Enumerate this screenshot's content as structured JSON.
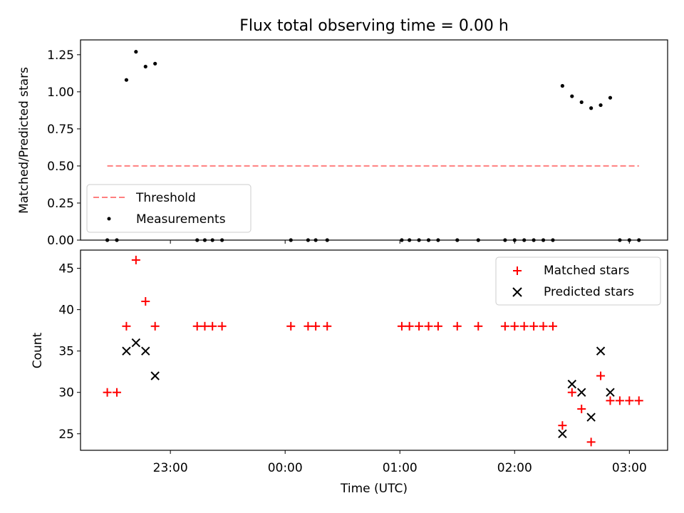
{
  "chart_data": [
    {
      "type": "scatter",
      "title": "Flux total observing time = 0.00 h",
      "xlabel": "",
      "ylabel": "Matched/Predicted stars",
      "xlim": [
        "22:13",
        "03:20"
      ],
      "ylim": [
        0,
        1.35
      ],
      "yticks": [
        0.0,
        0.25,
        0.5,
        0.75,
        1.0,
        1.25
      ],
      "ytick_labels": [
        "0.00",
        "0.25",
        "0.50",
        "0.75",
        "1.00",
        "1.25"
      ],
      "legend_position": "lower-left",
      "threshold": {
        "name": "Threshold",
        "y": 0.5,
        "x_range": [
          "22:27",
          "03:05"
        ],
        "color": "#ff7f7f"
      },
      "measurements": {
        "name": "Measurements",
        "color": "#000000",
        "x": [
          "22:27",
          "22:32",
          "22:37",
          "22:42",
          "22:47",
          "22:52",
          "23:14",
          "23:18",
          "23:22",
          "23:27",
          "00:03",
          "00:12",
          "00:16",
          "00:22",
          "01:01",
          "01:05",
          "01:10",
          "01:15",
          "01:20",
          "01:30",
          "01:41",
          "01:55",
          "02:00",
          "02:05",
          "02:10",
          "02:15",
          "02:20",
          "02:25",
          "02:30",
          "02:35",
          "02:40",
          "02:45",
          "02:50",
          "02:55",
          "03:00",
          "03:05"
        ],
        "y": [
          0.0,
          0.0,
          1.08,
          1.27,
          1.17,
          1.19,
          0.0,
          0.0,
          0.0,
          0.0,
          0.0,
          0.0,
          0.0,
          0.0,
          0.0,
          0.0,
          0.0,
          0.0,
          0.0,
          0.0,
          0.0,
          0.0,
          0.0,
          0.0,
          0.0,
          0.0,
          0.0,
          1.04,
          0.97,
          0.93,
          0.89,
          0.91,
          0.96,
          0.0,
          0.0,
          0.0
        ]
      }
    },
    {
      "type": "scatter",
      "title": "",
      "xlabel": "Time (UTC)",
      "ylabel": "Count",
      "xlim": [
        "22:13",
        "03:20"
      ],
      "ylim": [
        23,
        47.2
      ],
      "yticks": [
        25,
        30,
        35,
        40,
        45
      ],
      "ytick_labels": [
        "25",
        "30",
        "35",
        "40",
        "45"
      ],
      "xticks": [
        "23:00",
        "00:00",
        "01:00",
        "02:00",
        "03:00"
      ],
      "legend_position": "top-right",
      "series": [
        {
          "name": "Matched stars",
          "marker": "plus",
          "color": "#ff0000",
          "x": [
            "22:27",
            "22:32",
            "22:37",
            "22:42",
            "22:47",
            "22:52",
            "23:14",
            "23:18",
            "23:22",
            "23:27",
            "00:03",
            "00:12",
            "00:16",
            "00:22",
            "01:01",
            "01:05",
            "01:10",
            "01:15",
            "01:20",
            "01:30",
            "01:41",
            "01:55",
            "02:00",
            "02:05",
            "02:10",
            "02:15",
            "02:20",
            "02:25",
            "02:30",
            "02:35",
            "02:40",
            "02:45",
            "02:50",
            "02:55",
            "03:00",
            "03:05"
          ],
          "y": [
            30,
            30,
            38,
            46,
            41,
            38,
            38,
            38,
            38,
            38,
            38,
            38,
            38,
            38,
            38,
            38,
            38,
            38,
            38,
            38,
            38,
            38,
            38,
            38,
            38,
            38,
            38,
            26,
            30,
            28,
            24,
            32,
            29,
            29,
            29,
            29
          ]
        },
        {
          "name": "Predicted stars",
          "marker": "x",
          "color": "#000000",
          "x": [
            "22:37",
            "22:42",
            "22:47",
            "22:52",
            "02:25",
            "02:30",
            "02:35",
            "02:40",
            "02:45",
            "02:50"
          ],
          "y": [
            35,
            36,
            35,
            32,
            25,
            31,
            30,
            27,
            35,
            30
          ]
        }
      ]
    }
  ]
}
